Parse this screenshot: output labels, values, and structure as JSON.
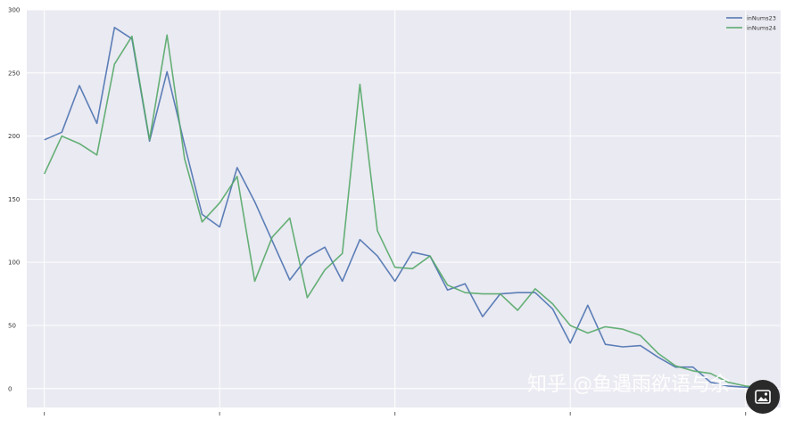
{
  "chart_data": {
    "type": "line",
    "title": "",
    "xlabel": "",
    "ylabel": "",
    "x": [
      0,
      1,
      2,
      3,
      4,
      5,
      6,
      7,
      8,
      9,
      10,
      11,
      12,
      13,
      14,
      15,
      16,
      17,
      18,
      19,
      20,
      21,
      22,
      23,
      24,
      25,
      26,
      27,
      28,
      29,
      30,
      31,
      32,
      33,
      34,
      35,
      36,
      37,
      38,
      39,
      40,
      41
    ],
    "xlim": [
      -1,
      42
    ],
    "ylim": [
      -15,
      300
    ],
    "yticks": [
      0,
      50,
      100,
      150,
      200,
      250,
      300
    ],
    "ytick_labels": [
      "0",
      "50",
      "100",
      "150",
      "200",
      "250",
      "300"
    ],
    "grid": true,
    "legend_position": "top-right",
    "series": [
      {
        "name": "inNums23",
        "color": "#4c72b0",
        "values": [
          197,
          203,
          240,
          210,
          286,
          277,
          196,
          251,
          193,
          138,
          128,
          175,
          148,
          117,
          86,
          104,
          112,
          85,
          118,
          105,
          85,
          108,
          105,
          78,
          83,
          57,
          75,
          76,
          76,
          63,
          36,
          66,
          35,
          33,
          34,
          25,
          17,
          17,
          5,
          2,
          1,
          1
        ]
      },
      {
        "name": "inNums24",
        "color": "#55a868",
        "values": [
          170,
          200,
          194,
          185,
          257,
          279,
          197,
          280,
          182,
          132,
          147,
          168,
          85,
          120,
          135,
          72,
          94,
          107,
          241,
          125,
          96,
          95,
          105,
          82,
          76,
          75,
          75,
          62,
          79,
          67,
          50,
          44,
          49,
          47,
          42,
          28,
          18,
          14,
          12,
          5,
          2,
          1
        ]
      }
    ]
  },
  "watermark": {
    "text": "知乎 @鱼遇雨欲语与余"
  },
  "icons": {
    "badge": "photo-icon"
  },
  "colors": {
    "plot_background": "#eaeaf2",
    "grid": "#ffffff"
  }
}
